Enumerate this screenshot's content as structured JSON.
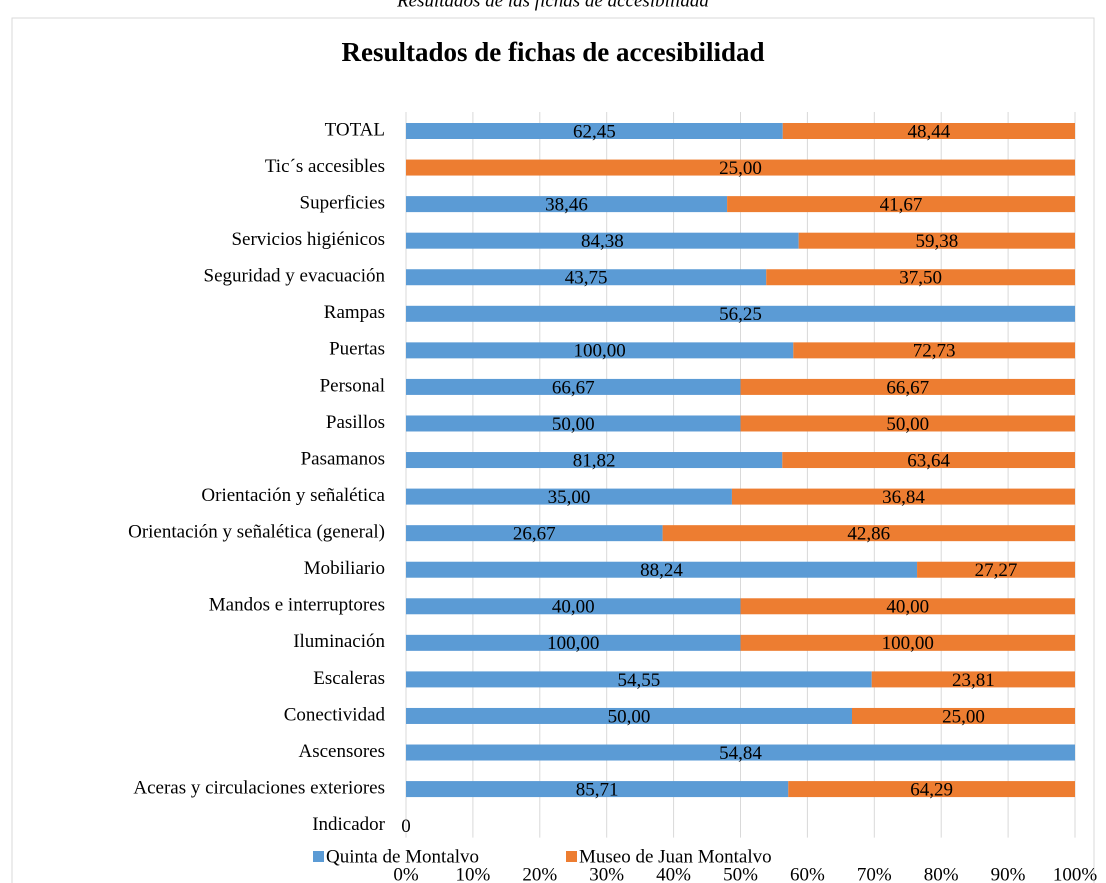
{
  "chart_data": {
    "type": "stacked_percent_barh",
    "caption": "Resultados de las fichas de accesibilidad",
    "title": "Resultados de fichas de accesibilidad",
    "categories": [
      "TOTAL",
      "Tic´s accesibles",
      "Superficies",
      "Servicios higiénicos",
      "Seguridad y evacuación",
      "Rampas",
      "Puertas",
      "Personal",
      "Pasillos",
      "Pasamanos",
      "Orientación y señalética",
      "Orientación y señalética (general)",
      "Mobiliario",
      "Mandos e interruptores",
      "Iluminación",
      "Escaleras",
      "Conectividad",
      "Ascensores",
      "Aceras y circulaciones exteriores",
      "Indicador"
    ],
    "series": [
      {
        "name": "Quinta de Montalvo",
        "color": "#5b9bd5",
        "values": [
          62.45,
          null,
          38.46,
          84.38,
          43.75,
          56.25,
          100,
          66.67,
          50,
          81.82,
          35,
          26.67,
          88.24,
          40,
          100,
          54.55,
          50,
          54.84,
          85.71,
          0
        ],
        "value_labels": [
          "62,45",
          null,
          "38,46",
          "84,38",
          "43,75",
          "56,25",
          "100,00",
          "66,67",
          "50,00",
          "81,82",
          "35,00",
          "26,67",
          "88,24",
          "40,00",
          "100,00",
          "54,55",
          "50,00",
          "54,84",
          "85,71",
          "0"
        ]
      },
      {
        "name": "Museo de Juan Montalvo",
        "color": "#ed7d31",
        "values": [
          48.44,
          25,
          41.67,
          59.38,
          37.5,
          null,
          72.73,
          66.67,
          50,
          63.64,
          36.84,
          42.86,
          27.27,
          40,
          100,
          23.81,
          25,
          null,
          64.29,
          null
        ],
        "value_labels": [
          "48,44",
          "25,00",
          "41,67",
          "59,38",
          "37,50",
          null,
          "72,73",
          "66,67",
          "50,00",
          "63,64",
          "36,84",
          "42,86",
          "27,27",
          "40,00",
          "100,00",
          "23,81",
          "25,00",
          null,
          "64,29",
          null
        ]
      }
    ],
    "xlim": [
      0,
      100
    ],
    "xticks": [
      {
        "value": 0,
        "label": "0%"
      },
      {
        "value": 10,
        "label": "10%"
      },
      {
        "value": 20,
        "label": "20%"
      },
      {
        "value": 30,
        "label": "30%"
      },
      {
        "value": 40,
        "label": "40%"
      },
      {
        "value": 50,
        "label": "50%"
      },
      {
        "value": 60,
        "label": "60%"
      },
      {
        "value": 70,
        "label": "70%"
      },
      {
        "value": 80,
        "label": "80%"
      },
      {
        "value": 90,
        "label": "90%"
      },
      {
        "value": 100,
        "label": "100%"
      }
    ],
    "grid": true,
    "legend": "bottom"
  }
}
